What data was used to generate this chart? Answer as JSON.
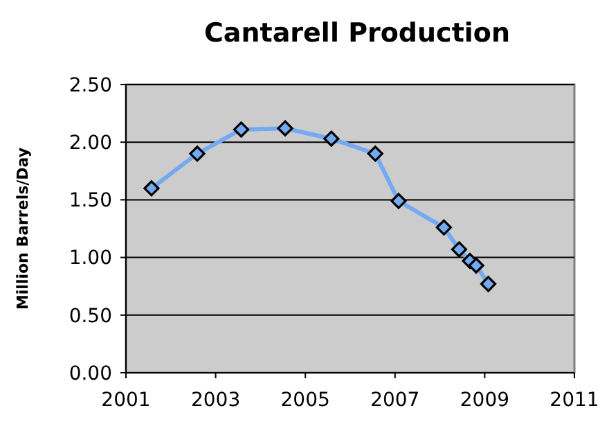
{
  "chart_data": {
    "type": "line",
    "title": "Cantarell Production",
    "ylabel": "Million Barrels/Day",
    "x": [
      2001.57,
      2002.59,
      2003.57,
      2004.55,
      2005.58,
      2006.56,
      2007.08,
      2008.09,
      2008.43,
      2008.67,
      2008.81,
      2009.08
    ],
    "series": [
      {
        "color": "#73aaf2",
        "values": [
          1.6,
          1.9,
          2.11,
          2.12,
          2.03,
          1.9,
          1.49,
          1.26,
          1.07,
          0.97,
          0.93,
          0.77
        ]
      }
    ],
    "xlim": [
      2001,
      2011
    ],
    "xticks": [
      2001,
      2003,
      2005,
      2007,
      2009,
      2011
    ],
    "ylim": [
      0,
      2.5
    ],
    "yticks": [
      {
        "value": 0,
        "label": "0.00"
      },
      {
        "value": 0.5,
        "label": "0.50"
      },
      {
        "value": 1,
        "label": "1.00"
      },
      {
        "value": 1.5,
        "label": "1.50"
      },
      {
        "value": 2,
        "label": "2.00"
      },
      {
        "value": 2.5,
        "label": "2.50"
      }
    ],
    "grid": "y",
    "marker": "diamond",
    "line_style": "solid"
  }
}
